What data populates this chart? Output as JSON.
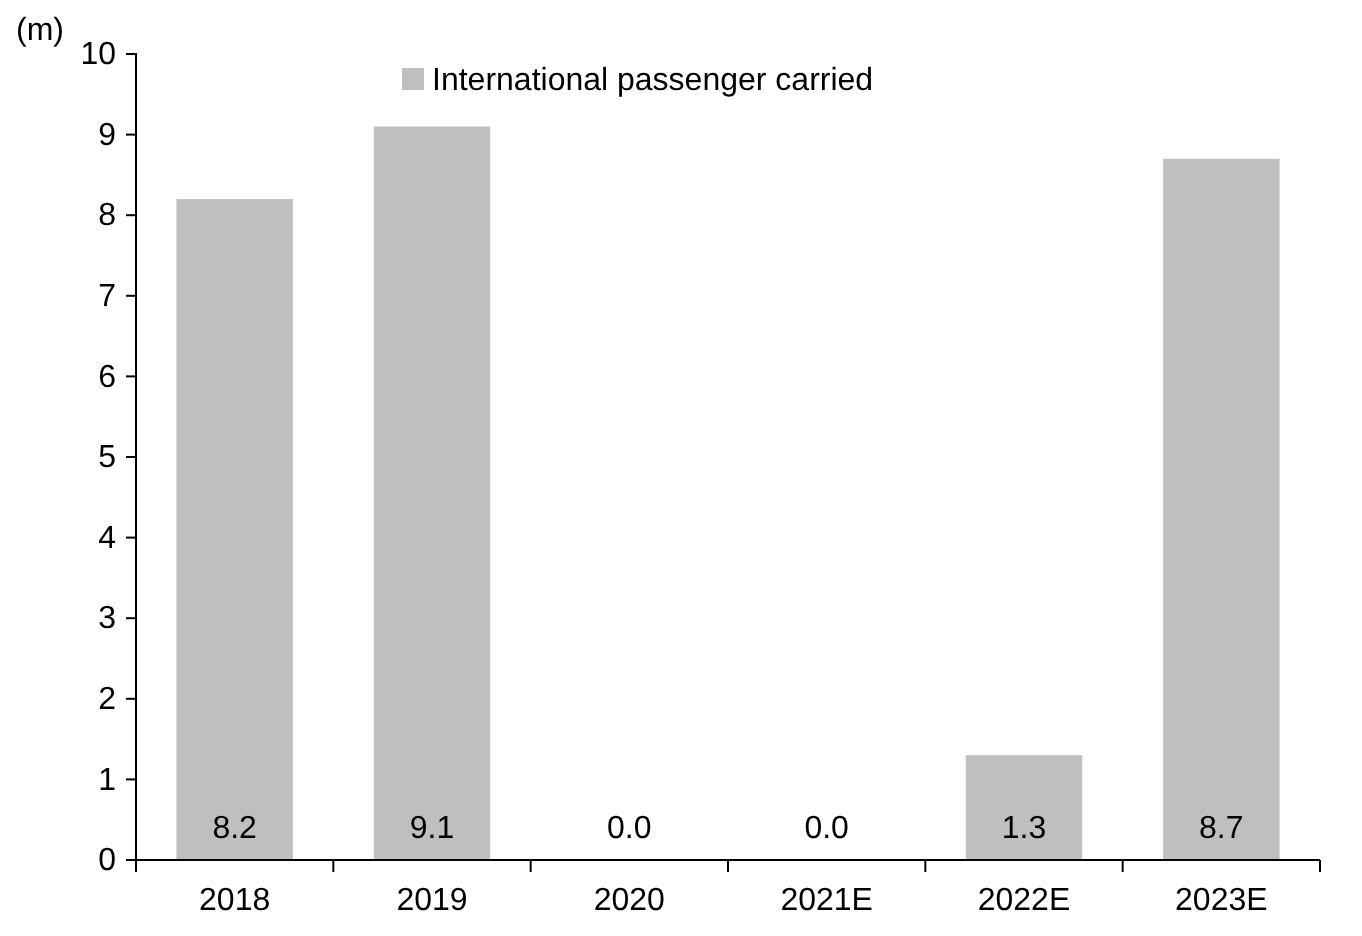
{
  "chart_data": {
    "type": "bar",
    "ylabel": "(m)",
    "categories": [
      "2018",
      "2019",
      "2020",
      "2021E",
      "2022E",
      "2023E"
    ],
    "series": [
      {
        "name": "International passenger carried",
        "color": "#bfbfbf",
        "values": [
          8.2,
          9.1,
          0.0,
          0.0,
          1.3,
          8.7
        ],
        "value_labels": [
          "8.2",
          "9.1",
          "0.0",
          "0.0",
          "1.3",
          "8.7"
        ]
      }
    ],
    "ylim": [
      0,
      10
    ],
    "yticks": [
      0,
      1,
      2,
      3,
      4,
      5,
      6,
      7,
      8,
      9,
      10
    ],
    "legend": "top",
    "grid": false
  }
}
